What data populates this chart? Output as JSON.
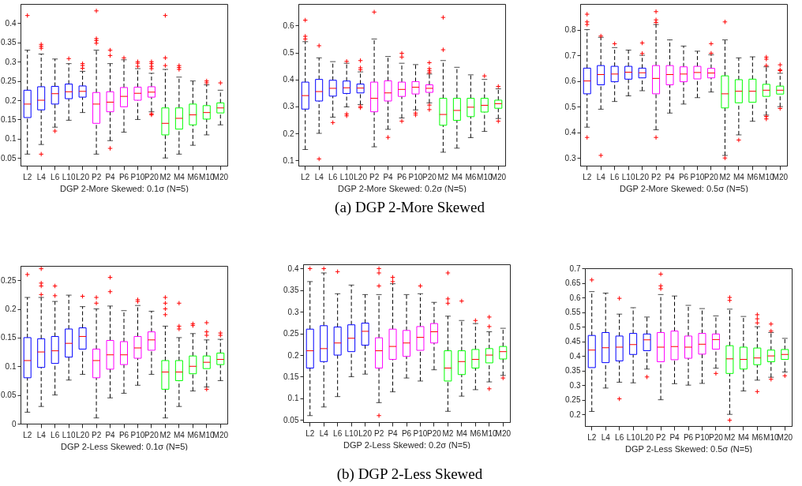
{
  "chart_data": [
    {
      "type": "box",
      "xlabel": "DGP 2-More Skewed: 0.1σ (N=5)",
      "categories": [
        "L2",
        "L4",
        "L6",
        "L10",
        "L20",
        "P2",
        "P4",
        "P6",
        "P10",
        "P20",
        "M2",
        "M4",
        "M6",
        "M10",
        "M20"
      ],
      "colors": [
        "#0000ff",
        "#0000ff",
        "#0000ff",
        "#0000ff",
        "#0000ff",
        "#ff00ff",
        "#ff00ff",
        "#ff00ff",
        "#ff00ff",
        "#ff00ff",
        "#00ff00",
        "#00ff00",
        "#00ff00",
        "#00ff00",
        "#00ff00"
      ],
      "ylim": [
        0.03,
        0.45
      ],
      "yticks": [
        0.05,
        0.1,
        0.15,
        0.2,
        0.25,
        0.3,
        0.35,
        0.4
      ],
      "boxes": [
        {
          "low": 0.06,
          "q1": 0.155,
          "median": 0.19,
          "q3": 0.226,
          "high": 0.33,
          "outliers": [
            0.42
          ]
        },
        {
          "low": 0.085,
          "q1": 0.175,
          "median": 0.2,
          "q3": 0.235,
          "high": 0.32,
          "outliers": [
            0.345,
            0.34,
            0.335,
            0.06
          ]
        },
        {
          "low": 0.13,
          "q1": 0.19,
          "median": 0.217,
          "q3": 0.236,
          "high": 0.307,
          "outliers": [
            0.12
          ]
        },
        {
          "low": 0.148,
          "q1": 0.204,
          "median": 0.222,
          "q3": 0.242,
          "high": 0.295,
          "outliers": [
            0.308
          ]
        },
        {
          "low": 0.168,
          "q1": 0.208,
          "median": 0.223,
          "q3": 0.237,
          "high": 0.275,
          "outliers": [
            0.295,
            0.29,
            0.283
          ]
        },
        {
          "low": 0.06,
          "q1": 0.14,
          "median": 0.19,
          "q3": 0.22,
          "high": 0.33,
          "outliers": [
            0.432,
            0.36,
            0.355,
            0.348
          ]
        },
        {
          "low": 0.095,
          "q1": 0.17,
          "median": 0.195,
          "q3": 0.222,
          "high": 0.295,
          "outliers": [
            0.33,
            0.316,
            0.075
          ]
        },
        {
          "low": 0.117,
          "q1": 0.183,
          "median": 0.21,
          "q3": 0.233,
          "high": 0.305,
          "outliers": [
            0.31
          ]
        },
        {
          "low": 0.15,
          "q1": 0.2,
          "median": 0.218,
          "q3": 0.234,
          "high": 0.282,
          "outliers": [
            0.3,
            0.296,
            0.288
          ]
        },
        {
          "low": 0.17,
          "q1": 0.208,
          "median": 0.221,
          "q3": 0.235,
          "high": 0.27,
          "outliers": [
            0.3,
            0.295,
            0.288,
            0.282,
            0.165,
            0.162
          ]
        },
        {
          "low": 0.05,
          "q1": 0.11,
          "median": 0.14,
          "q3": 0.18,
          "high": 0.28,
          "outliers": [
            0.42,
            0.31,
            0.29
          ]
        },
        {
          "low": 0.06,
          "q1": 0.125,
          "median": 0.153,
          "q3": 0.18,
          "high": 0.26,
          "outliers": [
            0.29,
            0.285,
            0.28
          ]
        },
        {
          "low": 0.083,
          "q1": 0.136,
          "median": 0.162,
          "q3": 0.19,
          "high": 0.25
        },
        {
          "low": 0.11,
          "q1": 0.151,
          "median": 0.168,
          "q3": 0.186,
          "high": 0.24,
          "outliers": [
            0.25,
            0.245
          ]
        },
        {
          "low": 0.136,
          "q1": 0.167,
          "median": 0.18,
          "q3": 0.193,
          "high": 0.226,
          "outliers": [
            0.245
          ]
        }
      ]
    },
    {
      "type": "box",
      "xlabel": "DGP 2-More Skewed: 0.2σ (N=5)",
      "annotations": [
        "(a) DGP 2-More Skewed"
      ],
      "categories": [
        "L2",
        "L4",
        "L6",
        "L10",
        "L20",
        "P2",
        "P4",
        "P6",
        "P10",
        "P20",
        "M2",
        "M4",
        "M6",
        "M10",
        "M20"
      ],
      "colors": [
        "#0000ff",
        "#0000ff",
        "#0000ff",
        "#0000ff",
        "#0000ff",
        "#ff00ff",
        "#ff00ff",
        "#ff00ff",
        "#ff00ff",
        "#ff00ff",
        "#00ff00",
        "#00ff00",
        "#00ff00",
        "#00ff00",
        "#00ff00"
      ],
      "ylim": [
        0.08,
        0.68
      ],
      "yticks": [
        0.1,
        0.2,
        0.3,
        0.4,
        0.5,
        0.6
      ],
      "boxes": [
        {
          "low": 0.14,
          "q1": 0.29,
          "median": 0.34,
          "q3": 0.39,
          "high": 0.54,
          "outliers": [
            0.62,
            0.56,
            0.55
          ]
        },
        {
          "low": 0.2,
          "q1": 0.32,
          "median": 0.355,
          "q3": 0.4,
          "high": 0.48,
          "outliers": [
            0.525,
            0.105
          ]
        },
        {
          "low": 0.26,
          "q1": 0.338,
          "median": 0.367,
          "q3": 0.397,
          "high": 0.466,
          "outliers": [
            0.24
          ]
        },
        {
          "low": 0.298,
          "q1": 0.348,
          "median": 0.369,
          "q3": 0.394,
          "high": 0.46,
          "outliers": [
            0.467,
            0.272,
            0.265
          ]
        },
        {
          "low": 0.307,
          "q1": 0.35,
          "median": 0.368,
          "q3": 0.383,
          "high": 0.428,
          "outliers": [
            0.47,
            0.443,
            0.436,
            0.3,
            0.295
          ]
        },
        {
          "low": 0.15,
          "q1": 0.28,
          "median": 0.33,
          "q3": 0.39,
          "high": 0.55,
          "outliers": [
            0.65
          ]
        },
        {
          "low": 0.215,
          "q1": 0.32,
          "median": 0.35,
          "q3": 0.395,
          "high": 0.485,
          "outliers": [
            0.185
          ]
        },
        {
          "low": 0.257,
          "q1": 0.337,
          "median": 0.363,
          "q3": 0.39,
          "high": 0.46,
          "outliers": [
            0.497,
            0.483,
            0.245
          ]
        },
        {
          "low": 0.287,
          "q1": 0.346,
          "median": 0.371,
          "q3": 0.392,
          "high": 0.455,
          "outliers": [
            0.275,
            0.268
          ]
        },
        {
          "low": 0.313,
          "q1": 0.352,
          "median": 0.367,
          "q3": 0.38,
          "high": 0.42,
          "outliers": [
            0.462,
            0.44,
            0.432,
            0.425,
            0.305,
            0.288
          ]
        },
        {
          "low": 0.13,
          "q1": 0.23,
          "median": 0.27,
          "q3": 0.33,
          "high": 0.47,
          "outliers": [
            0.63,
            0.51
          ]
        },
        {
          "low": 0.145,
          "q1": 0.248,
          "median": 0.285,
          "q3": 0.33,
          "high": 0.445
        },
        {
          "low": 0.184,
          "q1": 0.262,
          "median": 0.297,
          "q3": 0.33,
          "high": 0.417
        },
        {
          "low": 0.207,
          "q1": 0.279,
          "median": 0.304,
          "q3": 0.33,
          "high": 0.4,
          "outliers": [
            0.413
          ]
        },
        {
          "low": 0.255,
          "q1": 0.293,
          "median": 0.31,
          "q3": 0.323,
          "high": 0.365,
          "outliers": [
            0.374,
            0.245
          ]
        }
      ]
    },
    {
      "type": "box",
      "xlabel": "DGP 2-More Skewed: 0.5σ (N=5)",
      "categories": [
        "L2",
        "L4",
        "L6",
        "L10",
        "L20",
        "P2",
        "P4",
        "P6",
        "P10",
        "P20",
        "M2",
        "M4",
        "M6",
        "M10",
        "M20"
      ],
      "colors": [
        "#0000ff",
        "#0000ff",
        "#0000ff",
        "#0000ff",
        "#0000ff",
        "#ff00ff",
        "#ff00ff",
        "#ff00ff",
        "#ff00ff",
        "#ff00ff",
        "#00ff00",
        "#00ff00",
        "#00ff00",
        "#00ff00",
        "#00ff00"
      ],
      "ylim": [
        0.27,
        0.9
      ],
      "yticks": [
        0.3,
        0.4,
        0.5,
        0.6,
        0.7,
        0.8
      ],
      "boxes": [
        {
          "low": 0.42,
          "q1": 0.55,
          "median": 0.6,
          "q3": 0.65,
          "high": 0.8,
          "outliers": [
            0.86,
            0.83,
            0.82,
            0.38
          ]
        },
        {
          "low": 0.49,
          "q1": 0.585,
          "median": 0.625,
          "q3": 0.66,
          "high": 0.77,
          "outliers": [
            0.775,
            0.31
          ]
        },
        {
          "low": 0.52,
          "q1": 0.597,
          "median": 0.627,
          "q3": 0.657,
          "high": 0.73,
          "outliers": [
            0.745
          ]
        },
        {
          "low": 0.542,
          "q1": 0.607,
          "median": 0.634,
          "q3": 0.657,
          "high": 0.72
        },
        {
          "low": 0.562,
          "q1": 0.612,
          "median": 0.632,
          "q3": 0.65,
          "high": 0.7,
          "outliers": [
            0.748,
            0.707
          ]
        },
        {
          "low": 0.41,
          "q1": 0.55,
          "median": 0.61,
          "q3": 0.66,
          "high": 0.82,
          "outliers": [
            0.87,
            0.838,
            0.828,
            0.38
          ]
        },
        {
          "low": 0.475,
          "q1": 0.585,
          "median": 0.625,
          "q3": 0.66,
          "high": 0.76
        },
        {
          "low": 0.51,
          "q1": 0.597,
          "median": 0.627,
          "q3": 0.655,
          "high": 0.736
        },
        {
          "low": 0.535,
          "q1": 0.608,
          "median": 0.633,
          "q3": 0.657,
          "high": 0.716
        },
        {
          "low": 0.557,
          "q1": 0.612,
          "median": 0.631,
          "q3": 0.649,
          "high": 0.702,
          "outliers": [
            0.745,
            0.708
          ]
        },
        {
          "low": 0.31,
          "q1": 0.495,
          "median": 0.55,
          "q3": 0.62,
          "high": 0.76,
          "outliers": [
            0.83,
            0.3
          ]
        },
        {
          "low": 0.39,
          "q1": 0.515,
          "median": 0.56,
          "q3": 0.605,
          "high": 0.69,
          "outliers": [
            0.37
          ]
        },
        {
          "low": 0.443,
          "q1": 0.517,
          "median": 0.56,
          "q3": 0.607,
          "high": 0.694
        },
        {
          "low": 0.467,
          "q1": 0.54,
          "median": 0.564,
          "q3": 0.587,
          "high": 0.655,
          "outliers": [
            0.693,
            0.685,
            0.66,
            0.462,
            0.452
          ]
        },
        {
          "low": 0.5,
          "q1": 0.549,
          "median": 0.564,
          "q3": 0.58,
          "high": 0.63,
          "outliers": [
            0.663,
            0.643,
            0.64,
            0.493
          ]
        }
      ]
    },
    {
      "type": "box",
      "xlabel": "DGP 2-Less Skewed: 0.1σ (N=5)",
      "categories": [
        "L2",
        "L4",
        "L6",
        "L10",
        "L20",
        "P2",
        "P4",
        "P6",
        "P10",
        "P20",
        "M2",
        "M4",
        "M6",
        "M10",
        "M20"
      ],
      "colors": [
        "#0000ff",
        "#0000ff",
        "#0000ff",
        "#0000ff",
        "#0000ff",
        "#ff00ff",
        "#ff00ff",
        "#ff00ff",
        "#ff00ff",
        "#ff00ff",
        "#00ff00",
        "#00ff00",
        "#00ff00",
        "#00ff00",
        "#00ff00"
      ],
      "ylim": [
        0,
        0.275
      ],
      "yticks": [
        0,
        0.05,
        0.1,
        0.15,
        0.2,
        0.25
      ],
      "boxes": [
        {
          "low": 0.02,
          "q1": 0.08,
          "median": 0.11,
          "q3": 0.15,
          "high": 0.22,
          "outliers": [
            0.26
          ]
        },
        {
          "low": 0.03,
          "q1": 0.098,
          "median": 0.125,
          "q3": 0.148,
          "high": 0.22,
          "outliers": [
            0.27,
            0.245,
            0.24,
            0.225
          ]
        },
        {
          "low": 0.05,
          "q1": 0.105,
          "median": 0.127,
          "q3": 0.152,
          "high": 0.213,
          "outliers": [
            0.24,
            0.223
          ]
        },
        {
          "low": 0.076,
          "q1": 0.116,
          "median": 0.14,
          "q3": 0.165,
          "high": 0.224
        },
        {
          "low": 0.086,
          "q1": 0.13,
          "median": 0.152,
          "q3": 0.167,
          "high": 0.204,
          "outliers": [
            0.222
          ]
        },
        {
          "low": 0.01,
          "q1": 0.08,
          "median": 0.11,
          "q3": 0.13,
          "high": 0.2,
          "outliers": [
            0.22,
            0.21
          ]
        },
        {
          "low": 0.045,
          "q1": 0.095,
          "median": 0.12,
          "q3": 0.145,
          "high": 0.205,
          "outliers": [
            0.255,
            0.23
          ]
        },
        {
          "low": 0.053,
          "q1": 0.103,
          "median": 0.12,
          "q3": 0.143,
          "high": 0.197
        },
        {
          "low": 0.067,
          "q1": 0.114,
          "median": 0.132,
          "q3": 0.152,
          "high": 0.206,
          "outliers": [
            0.216,
            0.213
          ]
        },
        {
          "low": 0.086,
          "q1": 0.128,
          "median": 0.146,
          "q3": 0.16,
          "high": 0.196
        },
        {
          "low": 0.01,
          "q1": 0.06,
          "median": 0.09,
          "q3": 0.11,
          "high": 0.17,
          "outliers": [
            0.22,
            0.21,
            0.2,
            0.19
          ]
        },
        {
          "low": 0.03,
          "q1": 0.075,
          "median": 0.09,
          "q3": 0.11,
          "high": 0.15,
          "outliers": [
            0.21,
            0.17,
            0.165
          ]
        },
        {
          "low": 0.057,
          "q1": 0.087,
          "median": 0.1,
          "q3": 0.118,
          "high": 0.157,
          "outliers": [
            0.174,
            0.171
          ]
        },
        {
          "low": 0.064,
          "q1": 0.096,
          "median": 0.107,
          "q3": 0.118,
          "high": 0.146,
          "outliers": [
            0.176,
            0.16,
            0.154,
            0.06
          ]
        },
        {
          "low": 0.075,
          "q1": 0.103,
          "median": 0.112,
          "q3": 0.123,
          "high": 0.147,
          "outliers": [
            0.158,
            0.154
          ]
        }
      ]
    },
    {
      "type": "box",
      "xlabel": "DGP 2-Less Skewed: 0.2σ (N=5)",
      "annotations": [
        "(b) DGP 2-Less Skewed"
      ],
      "categories": [
        "L2",
        "L4",
        "L6",
        "L10",
        "L20",
        "P2",
        "P4",
        "P6",
        "P10",
        "P20",
        "M2",
        "M4",
        "M6",
        "M10",
        "M20"
      ],
      "colors": [
        "#0000ff",
        "#0000ff",
        "#0000ff",
        "#0000ff",
        "#0000ff",
        "#ff00ff",
        "#ff00ff",
        "#ff00ff",
        "#ff00ff",
        "#ff00ff",
        "#00ff00",
        "#00ff00",
        "#00ff00",
        "#00ff00",
        "#00ff00"
      ],
      "ylim": [
        0.045,
        0.41
      ],
      "yticks": [
        0.05,
        0.1,
        0.15,
        0.2,
        0.25,
        0.3,
        0.35,
        0.4
      ],
      "boxes": [
        {
          "low": 0.06,
          "q1": 0.17,
          "median": 0.21,
          "q3": 0.26,
          "high": 0.37,
          "outliers": [
            0.4
          ]
        },
        {
          "low": 0.08,
          "q1": 0.185,
          "median": 0.215,
          "q3": 0.268,
          "high": 0.39,
          "outliers": [
            0.4
          ]
        },
        {
          "low": 0.104,
          "q1": 0.2,
          "median": 0.228,
          "q3": 0.265,
          "high": 0.342,
          "outliers": [
            0.393
          ]
        },
        {
          "low": 0.15,
          "q1": 0.208,
          "median": 0.239,
          "q3": 0.27,
          "high": 0.362
        },
        {
          "low": 0.156,
          "q1": 0.223,
          "median": 0.255,
          "q3": 0.274,
          "high": 0.34
        },
        {
          "low": 0.09,
          "q1": 0.17,
          "median": 0.21,
          "q3": 0.24,
          "high": 0.34,
          "outliers": [
            0.4,
            0.39,
            0.36,
            0.06
          ]
        },
        {
          "low": 0.115,
          "q1": 0.19,
          "median": 0.22,
          "q3": 0.26,
          "high": 0.365,
          "outliers": [
            0.38,
            0.37
          ]
        },
        {
          "low": 0.147,
          "q1": 0.197,
          "median": 0.228,
          "q3": 0.257,
          "high": 0.34
        },
        {
          "low": 0.14,
          "q1": 0.211,
          "median": 0.241,
          "q3": 0.266,
          "high": 0.342,
          "outliers": [
            0.36
          ]
        },
        {
          "low": 0.166,
          "q1": 0.228,
          "median": 0.254,
          "q3": 0.273,
          "high": 0.322
        },
        {
          "low": 0.07,
          "q1": 0.14,
          "median": 0.17,
          "q3": 0.21,
          "high": 0.29,
          "outliers": [
            0.39,
            0.33,
            0.32
          ]
        },
        {
          "low": 0.105,
          "q1": 0.155,
          "median": 0.185,
          "q3": 0.21,
          "high": 0.28,
          "outliers": [
            0.325
          ]
        },
        {
          "low": 0.12,
          "q1": 0.17,
          "median": 0.19,
          "q3": 0.213,
          "high": 0.273,
          "outliers": [
            0.28
          ]
        },
        {
          "low": 0.138,
          "q1": 0.182,
          "median": 0.2,
          "q3": 0.215,
          "high": 0.254,
          "outliers": [
            0.288,
            0.266,
            0.122
          ]
        },
        {
          "low": 0.153,
          "q1": 0.191,
          "median": 0.208,
          "q3": 0.22,
          "high": 0.262,
          "outliers": [
            0.147
          ]
        }
      ]
    },
    {
      "type": "box",
      "xlabel": "DGP 2-Less Skewed: 0.5σ (N=5)",
      "categories": [
        "L2",
        "L4",
        "L6",
        "L10",
        "L20",
        "P2",
        "P4",
        "P6",
        "P10",
        "P20",
        "M2",
        "M4",
        "M6",
        "M10",
        "M20"
      ],
      "colors": [
        "#0000ff",
        "#0000ff",
        "#0000ff",
        "#0000ff",
        "#0000ff",
        "#ff00ff",
        "#ff00ff",
        "#ff00ff",
        "#ff00ff",
        "#ff00ff",
        "#00ff00",
        "#00ff00",
        "#00ff00",
        "#00ff00",
        "#00ff00"
      ],
      "ylim": [
        0.16,
        0.7
      ],
      "yticks": [
        0.2,
        0.25,
        0.3,
        0.35,
        0.4,
        0.45,
        0.5,
        0.55,
        0.6,
        0.65,
        0.7
      ],
      "boxes": [
        {
          "low": 0.21,
          "q1": 0.36,
          "median": 0.42,
          "q3": 0.47,
          "high": 0.62,
          "outliers": [
            0.66
          ]
        },
        {
          "low": 0.29,
          "q1": 0.377,
          "median": 0.428,
          "q3": 0.48,
          "high": 0.615
        },
        {
          "low": 0.31,
          "q1": 0.383,
          "median": 0.43,
          "q3": 0.468,
          "high": 0.543,
          "outliers": [
            0.597,
            0.253
          ]
        },
        {
          "low": 0.308,
          "q1": 0.405,
          "median": 0.439,
          "q3": 0.477,
          "high": 0.565
        },
        {
          "low": 0.355,
          "q1": 0.418,
          "median": 0.455,
          "q3": 0.475,
          "high": 0.533,
          "outliers": [
            0.328
          ]
        },
        {
          "low": 0.25,
          "q1": 0.38,
          "median": 0.43,
          "q3": 0.48,
          "high": 0.61,
          "outliers": [
            0.68,
            0.64,
            0.63
          ]
        },
        {
          "low": 0.305,
          "q1": 0.387,
          "median": 0.432,
          "q3": 0.485,
          "high": 0.605
        },
        {
          "low": 0.3,
          "q1": 0.392,
          "median": 0.43,
          "q3": 0.468,
          "high": 0.573
        },
        {
          "low": 0.306,
          "q1": 0.406,
          "median": 0.44,
          "q3": 0.477,
          "high": 0.562
        },
        {
          "low": 0.358,
          "q1": 0.423,
          "median": 0.456,
          "q3": 0.475,
          "high": 0.537,
          "outliers": [
            0.34
          ]
        },
        {
          "low": 0.2,
          "q1": 0.34,
          "median": 0.39,
          "q3": 0.435,
          "high": 0.56,
          "outliers": [
            0.6,
            0.59,
            0.18
          ]
        },
        {
          "low": 0.28,
          "q1": 0.355,
          "median": 0.388,
          "q3": 0.43,
          "high": 0.535
        },
        {
          "low": 0.317,
          "q1": 0.37,
          "median": 0.393,
          "q3": 0.427,
          "high": 0.5,
          "outliers": [
            0.541,
            0.527,
            0.513,
            0.278
          ]
        },
        {
          "low": 0.327,
          "q1": 0.38,
          "median": 0.4,
          "q3": 0.42,
          "high": 0.48,
          "outliers": [
            0.509,
            0.485,
            0.32
          ]
        },
        {
          "low": 0.345,
          "q1": 0.388,
          "median": 0.405,
          "q3": 0.422,
          "high": 0.46,
          "outliers": [
            0.332
          ]
        }
      ]
    }
  ]
}
